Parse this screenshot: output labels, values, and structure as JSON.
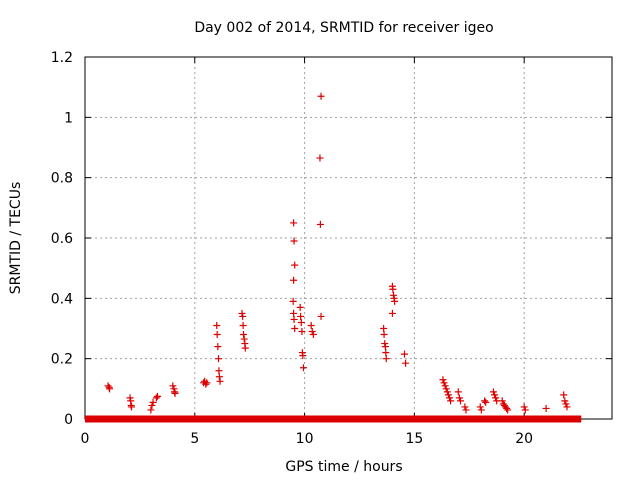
{
  "chart_data": {
    "type": "scatter",
    "title": "Day 002 of 2014, SRMTID for receiver igeo",
    "xlabel": "GPS time / hours",
    "ylabel": "SRMTID / TECUs",
    "xlim": [
      0,
      24
    ],
    "ylim": [
      0,
      1.2
    ],
    "xticks": [
      0,
      5,
      10,
      15,
      20
    ],
    "yticks": [
      0,
      0.2,
      0.4,
      0.6,
      0.8,
      1,
      1.2
    ],
    "xtick_labels": [
      "0",
      "5",
      "10",
      "15",
      "20"
    ],
    "ytick_labels": [
      "0",
      "0.2",
      "0.4",
      "0.6",
      "0.8",
      "1",
      "1.2"
    ],
    "grid": true,
    "marker": "+",
    "color": "#dd0000",
    "zero_band": [
      0.0,
      22.6
    ],
    "series": [
      {
        "name": "SRMTID",
        "points": [
          [
            1.05,
            0.11
          ],
          [
            1.1,
            0.105
          ],
          [
            1.12,
            0.1
          ],
          [
            2.05,
            0.07
          ],
          [
            2.08,
            0.06
          ],
          [
            2.1,
            0.045
          ],
          [
            2.12,
            0.04
          ],
          [
            3.0,
            0.03
          ],
          [
            3.05,
            0.045
          ],
          [
            3.1,
            0.055
          ],
          [
            3.25,
            0.07
          ],
          [
            3.3,
            0.075
          ],
          [
            4.0,
            0.11
          ],
          [
            4.05,
            0.1
          ],
          [
            4.08,
            0.09
          ],
          [
            4.1,
            0.085
          ],
          [
            5.4,
            0.12
          ],
          [
            5.45,
            0.125
          ],
          [
            5.5,
            0.115
          ],
          [
            5.55,
            0.12
          ],
          [
            6.0,
            0.31
          ],
          [
            6.02,
            0.28
          ],
          [
            6.05,
            0.24
          ],
          [
            6.08,
            0.2
          ],
          [
            6.1,
            0.16
          ],
          [
            6.12,
            0.14
          ],
          [
            6.15,
            0.125
          ],
          [
            7.15,
            0.35
          ],
          [
            7.18,
            0.34
          ],
          [
            7.2,
            0.31
          ],
          [
            7.22,
            0.28
          ],
          [
            7.25,
            0.265
          ],
          [
            7.28,
            0.25
          ],
          [
            7.3,
            0.235
          ],
          [
            9.5,
            0.65
          ],
          [
            9.52,
            0.59
          ],
          [
            9.55,
            0.51
          ],
          [
            9.5,
            0.46
          ],
          [
            9.48,
            0.39
          ],
          [
            9.5,
            0.35
          ],
          [
            9.52,
            0.33
          ],
          [
            9.55,
            0.3
          ],
          [
            9.8,
            0.37
          ],
          [
            9.82,
            0.34
          ],
          [
            9.85,
            0.32
          ],
          [
            9.88,
            0.29
          ],
          [
            9.9,
            0.22
          ],
          [
            9.92,
            0.21
          ],
          [
            9.95,
            0.17
          ],
          [
            10.3,
            0.31
          ],
          [
            10.35,
            0.29
          ],
          [
            10.4,
            0.28
          ],
          [
            10.75,
            1.07
          ],
          [
            10.7,
            0.865
          ],
          [
            10.72,
            0.645
          ],
          [
            10.75,
            0.34
          ],
          [
            13.6,
            0.3
          ],
          [
            13.62,
            0.28
          ],
          [
            13.65,
            0.25
          ],
          [
            13.68,
            0.24
          ],
          [
            13.7,
            0.22
          ],
          [
            13.72,
            0.2
          ],
          [
            14.0,
            0.44
          ],
          [
            14.02,
            0.43
          ],
          [
            14.05,
            0.41
          ],
          [
            14.08,
            0.4
          ],
          [
            14.1,
            0.39
          ],
          [
            14.0,
            0.35
          ],
          [
            14.55,
            0.215
          ],
          [
            14.6,
            0.185
          ],
          [
            16.3,
            0.13
          ],
          [
            16.35,
            0.12
          ],
          [
            16.4,
            0.11
          ],
          [
            16.45,
            0.1
          ],
          [
            16.5,
            0.09
          ],
          [
            16.55,
            0.08
          ],
          [
            16.6,
            0.07
          ],
          [
            16.65,
            0.06
          ],
          [
            17.0,
            0.09
          ],
          [
            17.05,
            0.07
          ],
          [
            17.1,
            0.06
          ],
          [
            17.3,
            0.04
          ],
          [
            17.35,
            0.03
          ],
          [
            18.0,
            0.04
          ],
          [
            18.05,
            0.03
          ],
          [
            18.2,
            0.06
          ],
          [
            18.25,
            0.055
          ],
          [
            18.6,
            0.09
          ],
          [
            18.65,
            0.08
          ],
          [
            18.7,
            0.07
          ],
          [
            18.75,
            0.06
          ],
          [
            19.0,
            0.06
          ],
          [
            19.05,
            0.05
          ],
          [
            19.1,
            0.045
          ],
          [
            19.15,
            0.04
          ],
          [
            19.2,
            0.035
          ],
          [
            19.25,
            0.03
          ],
          [
            20.0,
            0.04
          ],
          [
            20.05,
            0.03
          ],
          [
            21.0,
            0.035
          ],
          [
            21.8,
            0.08
          ],
          [
            21.85,
            0.06
          ],
          [
            21.9,
            0.05
          ],
          [
            21.95,
            0.04
          ]
        ]
      }
    ]
  }
}
